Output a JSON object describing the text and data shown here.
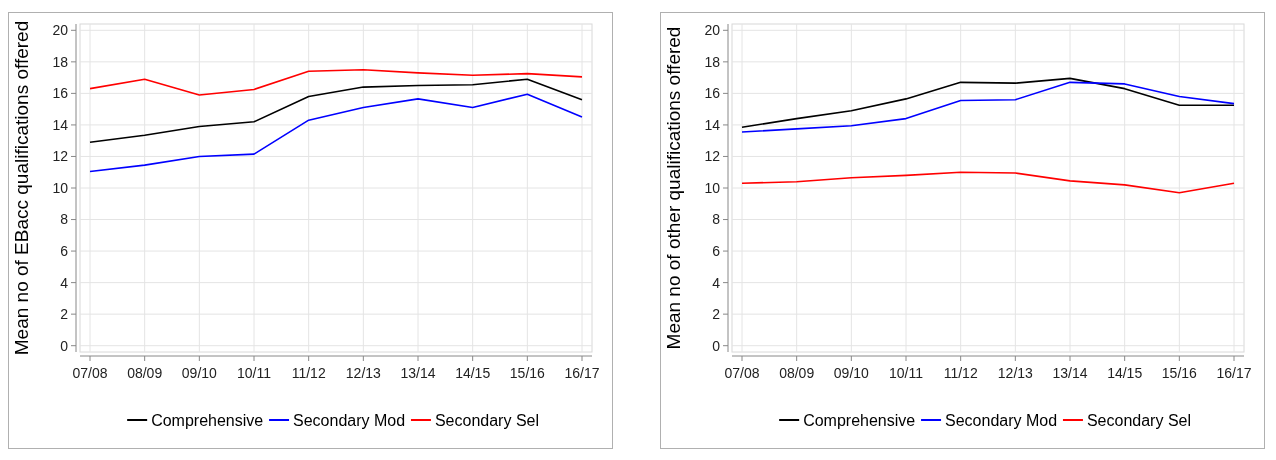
{
  "chart_data": [
    {
      "type": "line",
      "ylabel": "Mean no of EBacc qualifications offered",
      "categories": [
        "07/08",
        "08/09",
        "09/10",
        "10/11",
        "11/12",
        "12/13",
        "13/14",
        "14/15",
        "15/16",
        "16/17"
      ],
      "ylim": [
        -0.4,
        20.4
      ],
      "yticks": [
        0,
        2,
        4,
        6,
        8,
        10,
        12,
        14,
        16,
        18,
        20
      ],
      "grid": true,
      "legend": "bottom",
      "marker": "none",
      "series": [
        {
          "name": "Comprehensive",
          "color": "#000000",
          "values": [
            12.9,
            13.35,
            13.9,
            14.2,
            15.8,
            16.4,
            16.5,
            16.55,
            16.9,
            15.6
          ]
        },
        {
          "name": "Secondary Mod",
          "color": "#0000ff",
          "values": [
            11.05,
            11.45,
            12.0,
            12.15,
            14.3,
            15.1,
            15.65,
            15.1,
            15.95,
            14.5
          ]
        },
        {
          "name": "Secondary Sel",
          "color": "#ff0000",
          "values": [
            16.3,
            16.9,
            15.9,
            16.25,
            17.4,
            17.5,
            17.3,
            17.15,
            17.25,
            17.05
          ]
        }
      ]
    },
    {
      "type": "line",
      "ylabel": "Mean no of other qualifications offered",
      "categories": [
        "07/08",
        "08/09",
        "09/10",
        "10/11",
        "11/12",
        "12/13",
        "13/14",
        "14/15",
        "15/16",
        "16/17"
      ],
      "ylim": [
        -0.4,
        20.4
      ],
      "yticks": [
        0,
        2,
        4,
        6,
        8,
        10,
        12,
        14,
        16,
        18,
        20
      ],
      "grid": true,
      "legend": "bottom",
      "marker": "none",
      "series": [
        {
          "name": "Comprehensive",
          "color": "#000000",
          "values": [
            13.85,
            14.4,
            14.9,
            15.65,
            16.7,
            16.65,
            16.95,
            16.3,
            15.25,
            15.25
          ]
        },
        {
          "name": "Secondary Mod",
          "color": "#0000ff",
          "values": [
            13.55,
            13.75,
            13.95,
            14.4,
            15.55,
            15.6,
            16.7,
            16.6,
            15.8,
            15.35
          ]
        },
        {
          "name": "Secondary Sel",
          "color": "#ff0000",
          "values": [
            10.3,
            10.4,
            10.65,
            10.8,
            11.0,
            10.95,
            10.45,
            10.2,
            9.7,
            10.3
          ]
        }
      ]
    }
  ]
}
